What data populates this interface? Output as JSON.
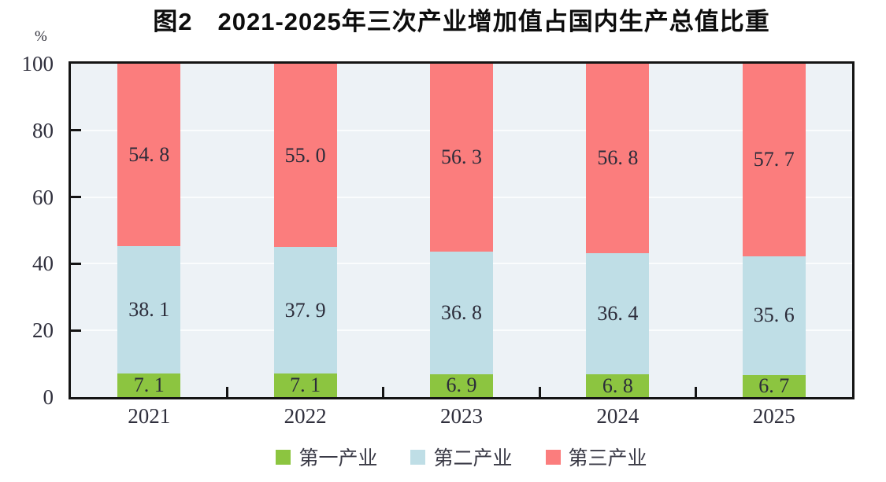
{
  "title": "图2　2021-2025年三次产业增加值占国内生产总值比重",
  "y_axis": {
    "unit": "%",
    "ticks": [
      0,
      20,
      40,
      60,
      80,
      100
    ],
    "min": 0,
    "max": 100
  },
  "legend": {
    "position": "bottom",
    "items": [
      {
        "label": "第一产业",
        "color": "#8cc540"
      },
      {
        "label": "第二产业",
        "color": "#bfdee6"
      },
      {
        "label": "第三产业",
        "color": "#fb7d7d"
      }
    ]
  },
  "colors": {
    "plot_background": "#edf2f6",
    "axis_border": "#141414",
    "gridline": "#fafcfd",
    "primary_industry": "#8cc540",
    "secondary_industry": "#bfdee6",
    "tertiary_industry": "#fb7d7d",
    "label_text": "#2c2c3a"
  },
  "chart_data": {
    "type": "bar",
    "stacked": true,
    "title": "图2　2021-2025年三次产业增加值占国内生产总值比重",
    "categories": [
      "2021",
      "2022",
      "2023",
      "2024",
      "2025"
    ],
    "series": [
      {
        "name": "第一产业",
        "color": "#8cc540",
        "values": [
          7.1,
          7.1,
          6.9,
          6.8,
          6.7
        ],
        "value_labels": [
          "7. 1",
          "7. 1",
          "6. 9",
          "6. 8",
          "6. 7"
        ]
      },
      {
        "name": "第二产业",
        "color": "#bfdee6",
        "values": [
          38.1,
          37.9,
          36.8,
          36.4,
          35.6
        ],
        "value_labels": [
          "38. 1",
          "37. 9",
          "36. 8",
          "36. 4",
          "35. 6"
        ]
      },
      {
        "name": "第三产业",
        "color": "#fb7d7d",
        "values": [
          54.8,
          55.0,
          56.3,
          56.8,
          57.7
        ],
        "value_labels": [
          "54. 8",
          "55. 0",
          "56. 3",
          "56. 8",
          "57. 7"
        ]
      }
    ],
    "xlabel": "",
    "ylabel": "%",
    "ylim": [
      0,
      100
    ],
    "grid": true,
    "legend_position": "bottom"
  }
}
